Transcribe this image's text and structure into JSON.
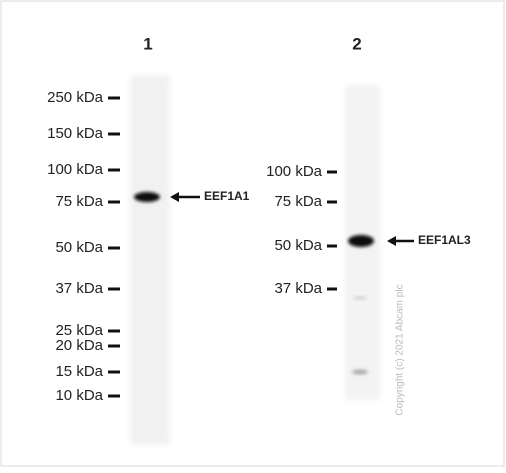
{
  "lanes": [
    {
      "label": "1",
      "markers": [
        "250 kDa",
        "150 kDa",
        "100 kDa",
        "75 kDa",
        "50 kDa",
        "37 kDa",
        "25 kDa",
        "20 kDa",
        "15 kDa",
        "10 kDa"
      ],
      "band_label": "EEF1A1"
    },
    {
      "label": "2",
      "markers": [
        "100 kDa",
        "75 kDa",
        "50 kDa",
        "37 kDa"
      ],
      "band_label": "EEF1AL3"
    }
  ],
  "copyright": "Copyright (c) 2021 Abcam plc"
}
